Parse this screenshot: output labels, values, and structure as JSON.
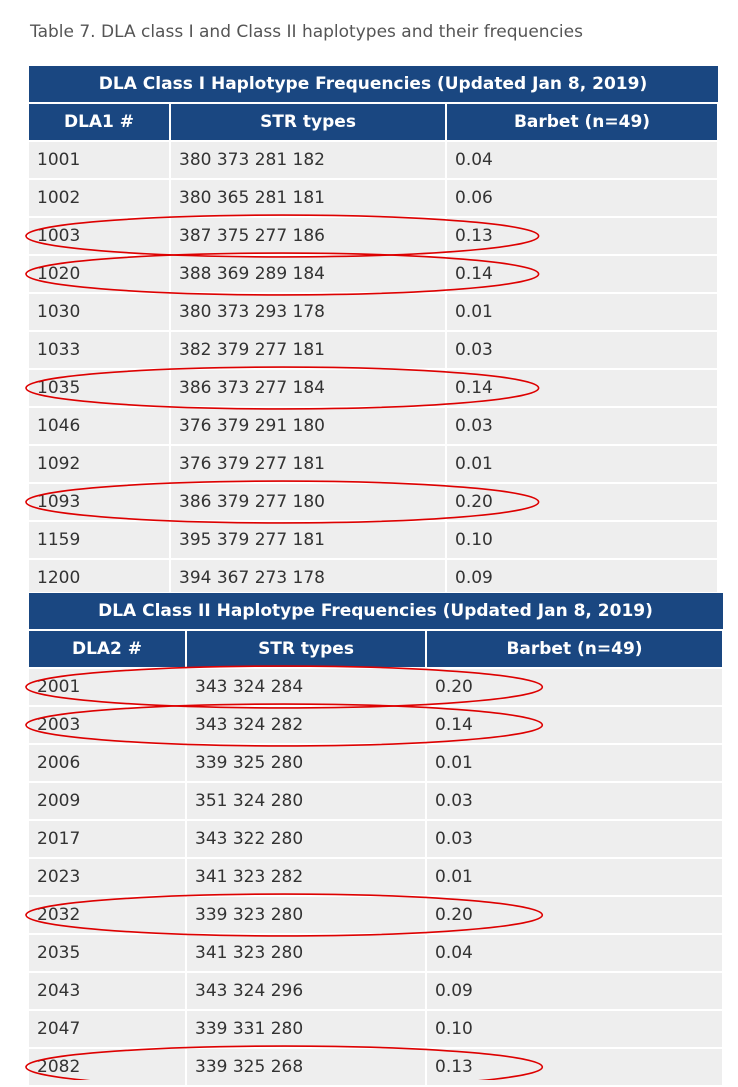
{
  "caption": "Table 7. DLA class I and Class II haplotypes and their frequencies",
  "class1": {
    "title": "DLA Class I Haplotype Frequencies (Updated Jan 8, 2019)",
    "headers": [
      "DLA1 #",
      "STR types",
      "Barbet (n=49)"
    ],
    "rows": [
      [
        "1001",
        "380 373 281 182",
        "0.04"
      ],
      [
        "1002",
        "380 365 281 181",
        "0.06"
      ],
      [
        "1003",
        "387 375 277 186",
        "0.13"
      ],
      [
        "1020",
        "388 369 289 184",
        "0.14"
      ],
      [
        "1030",
        "380 373 293 178",
        "0.01"
      ],
      [
        "1033",
        "382 379 277 181",
        "0.03"
      ],
      [
        "1035",
        "386 373 277 184",
        "0.14"
      ],
      [
        "1046",
        "376 379 291 180",
        "0.03"
      ],
      [
        "1092",
        "376 379 277 181",
        "0.01"
      ],
      [
        "1093",
        "386 379 277 180",
        "0.20"
      ],
      [
        "1159",
        "395 379 277 181",
        "0.10"
      ],
      [
        "1200",
        "394 367 273 178",
        "0.09"
      ]
    ],
    "circled": [
      2,
      3,
      6,
      9
    ]
  },
  "class2": {
    "title": "DLA Class II Haplotype Frequencies (Updated Jan 8, 2019)",
    "headers": [
      "DLA2 #",
      "STR types",
      "Barbet (n=49)"
    ],
    "rows": [
      [
        "2001",
        "343 324 284",
        "0.20"
      ],
      [
        "2003",
        "343 324 282",
        "0.14"
      ],
      [
        "2006",
        "339 325 280",
        "0.01"
      ],
      [
        "2009",
        "351 324 280",
        "0.03"
      ],
      [
        "2017",
        "343 322 280",
        "0.03"
      ],
      [
        "2023",
        "341 323 282",
        "0.01"
      ],
      [
        "2032",
        "339 323 280",
        "0.20"
      ],
      [
        "2035",
        "341 323 280",
        "0.04"
      ],
      [
        "2043",
        "343 324 296",
        "0.09"
      ],
      [
        "2047",
        "339 331 280",
        "0.10"
      ],
      [
        "2082",
        "339 325 268",
        "0.13"
      ]
    ],
    "circled": [
      0,
      1,
      6,
      10
    ]
  },
  "colors": {
    "header": "#1a4781",
    "cell": "#eeeeee",
    "circle": "#dd0000"
  }
}
